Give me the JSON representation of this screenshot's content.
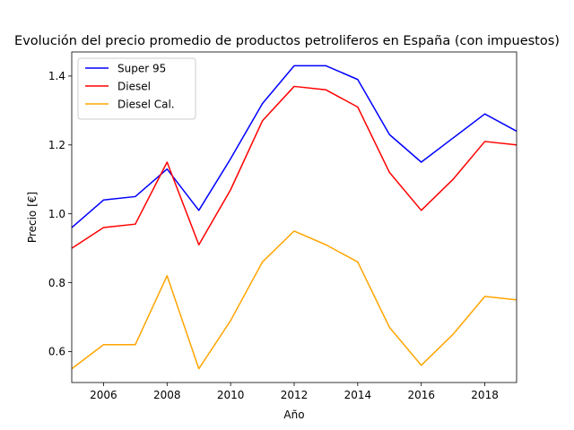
{
  "chart_data": {
    "type": "line",
    "title": "Evolución del precio promedio de productos petroliferos en España (con impuestos)",
    "xlabel": "Año",
    "ylabel": "Precio [€]",
    "xlim": [
      2005,
      2019
    ],
    "ylim": [
      0.51,
      1.47
    ],
    "xticks": [
      2006,
      2008,
      2010,
      2012,
      2014,
      2016,
      2018
    ],
    "yticks": [
      0.6,
      0.8,
      1.0,
      1.2,
      1.4
    ],
    "grid": false,
    "legend_position": "top-left",
    "x": [
      2005,
      2006,
      2007,
      2008,
      2009,
      2010,
      2011,
      2012,
      2013,
      2014,
      2015,
      2016,
      2017,
      2018,
      2019
    ],
    "series": [
      {
        "name": "Super 95",
        "color": "#0000ff",
        "values": [
          0.96,
          1.04,
          1.05,
          1.13,
          1.01,
          1.16,
          1.32,
          1.43,
          1.43,
          1.39,
          1.23,
          1.15,
          1.22,
          1.29,
          1.24
        ]
      },
      {
        "name": "Diesel",
        "color": "#ff0000",
        "values": [
          0.9,
          0.96,
          0.97,
          1.15,
          0.91,
          1.07,
          1.27,
          1.37,
          1.36,
          1.31,
          1.12,
          1.01,
          1.1,
          1.21,
          1.2
        ]
      },
      {
        "name": "Diesel Cal.",
        "color": "#ffa500",
        "values": [
          0.55,
          0.62,
          0.62,
          0.82,
          0.55,
          0.69,
          0.86,
          0.95,
          0.91,
          0.86,
          0.67,
          0.56,
          0.65,
          0.76,
          0.75
        ]
      }
    ]
  }
}
